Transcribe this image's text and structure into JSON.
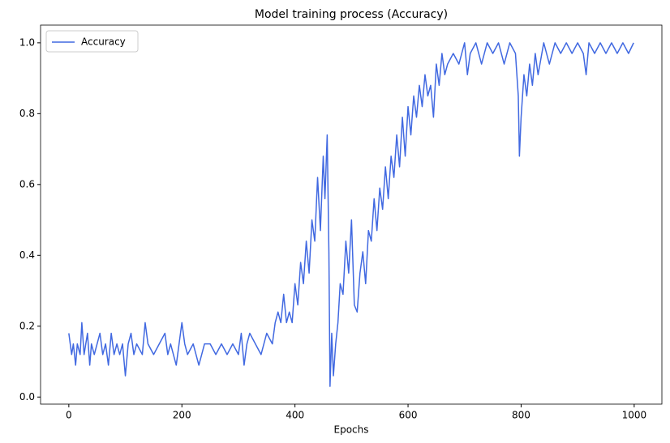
{
  "chart_data": {
    "type": "line",
    "title": "Model training process (Accuracy)",
    "x_label": "Epochs",
    "x": [
      0,
      5,
      8,
      12,
      15,
      20,
      23,
      27,
      30,
      33,
      37,
      40,
      45,
      50,
      55,
      60,
      65,
      70,
      75,
      80,
      85,
      90,
      95,
      100,
      105,
      110,
      115,
      120,
      130,
      135,
      140,
      150,
      160,
      170,
      175,
      180,
      190,
      195,
      200,
      205,
      210,
      220,
      230,
      240,
      250,
      260,
      270,
      280,
      290,
      300,
      305,
      310,
      315,
      320,
      330,
      340,
      345,
      350,
      360,
      365,
      370,
      375,
      380,
      385,
      390,
      395,
      400,
      405,
      410,
      415,
      420,
      425,
      430,
      435,
      440,
      445,
      450,
      453,
      457,
      460,
      462,
      465,
      468,
      472,
      476,
      480,
      485,
      490,
      495,
      500,
      505,
      510,
      515,
      520,
      525,
      530,
      535,
      540,
      545,
      550,
      555,
      560,
      565,
      570,
      575,
      580,
      585,
      590,
      595,
      600,
      605,
      610,
      615,
      620,
      625,
      630,
      635,
      640,
      645,
      650,
      655,
      660,
      665,
      670,
      680,
      690,
      700,
      705,
      710,
      720,
      730,
      740,
      750,
      760,
      770,
      780,
      790,
      795,
      797,
      800,
      805,
      810,
      815,
      820,
      825,
      830,
      840,
      850,
      860,
      870,
      880,
      890,
      900,
      910,
      915,
      920,
      930,
      940,
      950,
      960,
      970,
      980,
      990,
      999
    ],
    "series": [
      {
        "name": "Accuracy",
        "color": "#4169e1",
        "values": [
          0.18,
          0.12,
          0.15,
          0.09,
          0.15,
          0.12,
          0.21,
          0.12,
          0.15,
          0.18,
          0.09,
          0.15,
          0.12,
          0.15,
          0.18,
          0.12,
          0.15,
          0.09,
          0.18,
          0.12,
          0.15,
          0.12,
          0.15,
          0.06,
          0.15,
          0.18,
          0.12,
          0.15,
          0.12,
          0.21,
          0.15,
          0.12,
          0.15,
          0.18,
          0.12,
          0.15,
          0.09,
          0.15,
          0.21,
          0.15,
          0.12,
          0.15,
          0.09,
          0.15,
          0.15,
          0.12,
          0.15,
          0.12,
          0.15,
          0.12,
          0.18,
          0.09,
          0.15,
          0.18,
          0.15,
          0.12,
          0.15,
          0.18,
          0.15,
          0.21,
          0.24,
          0.21,
          0.29,
          0.21,
          0.24,
          0.21,
          0.32,
          0.26,
          0.38,
          0.32,
          0.44,
          0.35,
          0.5,
          0.44,
          0.62,
          0.47,
          0.68,
          0.56,
          0.74,
          0.41,
          0.03,
          0.18,
          0.06,
          0.15,
          0.21,
          0.32,
          0.29,
          0.44,
          0.35,
          0.5,
          0.26,
          0.24,
          0.35,
          0.41,
          0.32,
          0.47,
          0.44,
          0.56,
          0.47,
          0.59,
          0.53,
          0.65,
          0.56,
          0.68,
          0.62,
          0.74,
          0.65,
          0.79,
          0.68,
          0.82,
          0.74,
          0.85,
          0.79,
          0.88,
          0.82,
          0.91,
          0.85,
          0.88,
          0.79,
          0.94,
          0.88,
          0.97,
          0.91,
          0.94,
          0.97,
          0.94,
          1.0,
          0.91,
          0.97,
          1.0,
          0.94,
          1.0,
          0.97,
          1.0,
          0.94,
          1.0,
          0.97,
          0.85,
          0.68,
          0.79,
          0.91,
          0.85,
          0.94,
          0.88,
          0.97,
          0.91,
          1.0,
          0.94,
          1.0,
          0.97,
          1.0,
          0.97,
          1.0,
          0.97,
          0.91,
          1.0,
          0.97,
          1.0,
          0.97,
          1.0,
          0.97,
          1.0,
          0.97,
          1.0
        ]
      }
    ],
    "xlim": [
      -50,
      1049
    ],
    "ylim": [
      -0.02,
      1.05
    ],
    "xticks": [
      0,
      200,
      400,
      600,
      800,
      1000
    ],
    "yticks": [
      {
        "value": 0,
        "label": "0.0"
      },
      {
        "value": 0.2,
        "label": "0.2"
      },
      {
        "value": 0.4,
        "label": "0.4"
      },
      {
        "value": 0.6,
        "label": "0.6"
      },
      {
        "value": 0.8,
        "label": "0.8"
      },
      {
        "value": 1,
        "label": "1.0"
      }
    ],
    "legend": "upper left",
    "grid": false
  }
}
